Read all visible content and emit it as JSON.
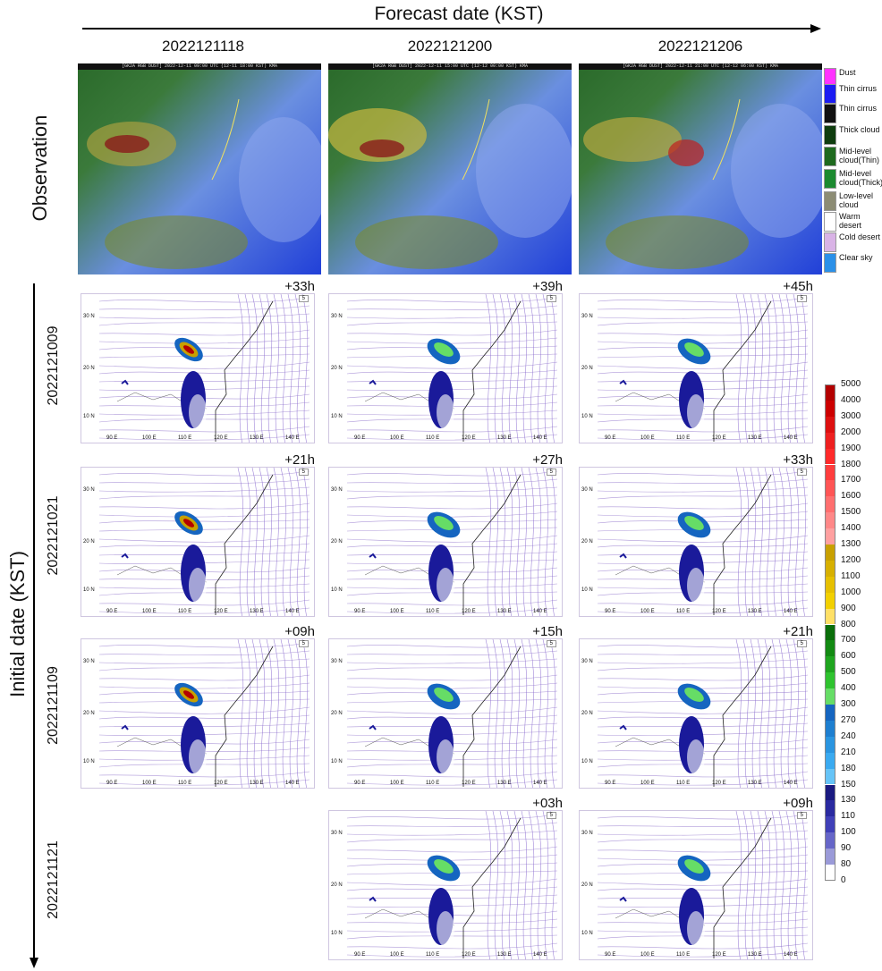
{
  "header": {
    "title": "Forecast date (KST)"
  },
  "forecast_dates": [
    "2022121118",
    "2022121200",
    "2022121206"
  ],
  "observation": {
    "label": "Observation",
    "images": [
      {
        "banner": "[GK2A RGB DUST] 2022-12-11 09:00 UTC (12-11 18:00 KST) KMA"
      },
      {
        "banner": "[GK2A RGB DUST] 2022-12-11 15:00 UTC (12-12 00:00 KST) KMA"
      },
      {
        "banner": "[GK2A RGB DUST] 2022-12-11 21:00 UTC (12-12 06:00 KST) KMA"
      }
    ],
    "legend": [
      {
        "label": "Dust",
        "color": "#ff33ff"
      },
      {
        "label": "Thin cirrus",
        "color": "#1b1bf2"
      },
      {
        "label": "Thin cirrus",
        "color": "#111111"
      },
      {
        "label": "Thick cloud",
        "color": "#0f3d0f"
      },
      {
        "label": "Mid-level cloud(Thin)",
        "color": "#1f6a1f"
      },
      {
        "label": "Mid-level cloud(Thick)",
        "color": "#1c8a30"
      },
      {
        "label": "Low-level cloud",
        "color": "#8c8c74"
      },
      {
        "label": "Warm desert",
        "color": "#ffffff"
      },
      {
        "label": "Cold desert",
        "color": "#d9b3e6"
      },
      {
        "label": "Clear sky",
        "color": "#2b90e8"
      }
    ]
  },
  "initial_axis_label": "Initial date (KST)",
  "rows": [
    {
      "init": "2022121009",
      "leads": [
        "+33h",
        "+39h",
        "+45h"
      ]
    },
    {
      "init": "2022121021",
      "leads": [
        "+21h",
        "+27h",
        "+33h"
      ]
    },
    {
      "init": "2022121109",
      "leads": [
        "+09h",
        "+15h",
        "+21h"
      ]
    },
    {
      "init": "2022121121",
      "leads": [
        "",
        "+03h",
        "+09h"
      ]
    }
  ],
  "map_labels": {
    "lon": [
      "90 E",
      "100 E",
      "110 E",
      "120 E",
      "130 E",
      "140 E"
    ],
    "lat": [
      "30 N",
      "20 N",
      "10 N"
    ],
    "ref_vector": "5"
  },
  "colorbar": {
    "levels": [
      "5000",
      "4000",
      "3000",
      "2000",
      "1900",
      "1800",
      "1700",
      "1600",
      "1500",
      "1400",
      "1300",
      "1200",
      "1100",
      "1000",
      "900",
      "800",
      "700",
      "600",
      "500",
      "400",
      "300",
      "270",
      "240",
      "210",
      "180",
      "150",
      "130",
      "110",
      "100",
      "90",
      "80",
      "0"
    ],
    "colors": [
      "#b30000",
      "#cc0000",
      "#dd1010",
      "#ee2020",
      "#ff2a2a",
      "#ff3d3d",
      "#ff5555",
      "#ff6f6f",
      "#ff8888",
      "#ffa0a0",
      "#c8a000",
      "#d7b000",
      "#e6c000",
      "#f2d000",
      "#ffe066",
      "#0a6e0a",
      "#138a13",
      "#1fa51f",
      "#2fc32f",
      "#66dd66",
      "#1565c0",
      "#1e7fd0",
      "#2a95e0",
      "#3aaaf0",
      "#66c4f7",
      "#1a1a80",
      "#2a2aa0",
      "#4040b8",
      "#6666c8",
      "#9a9ad8",
      "#ffffff"
    ]
  }
}
